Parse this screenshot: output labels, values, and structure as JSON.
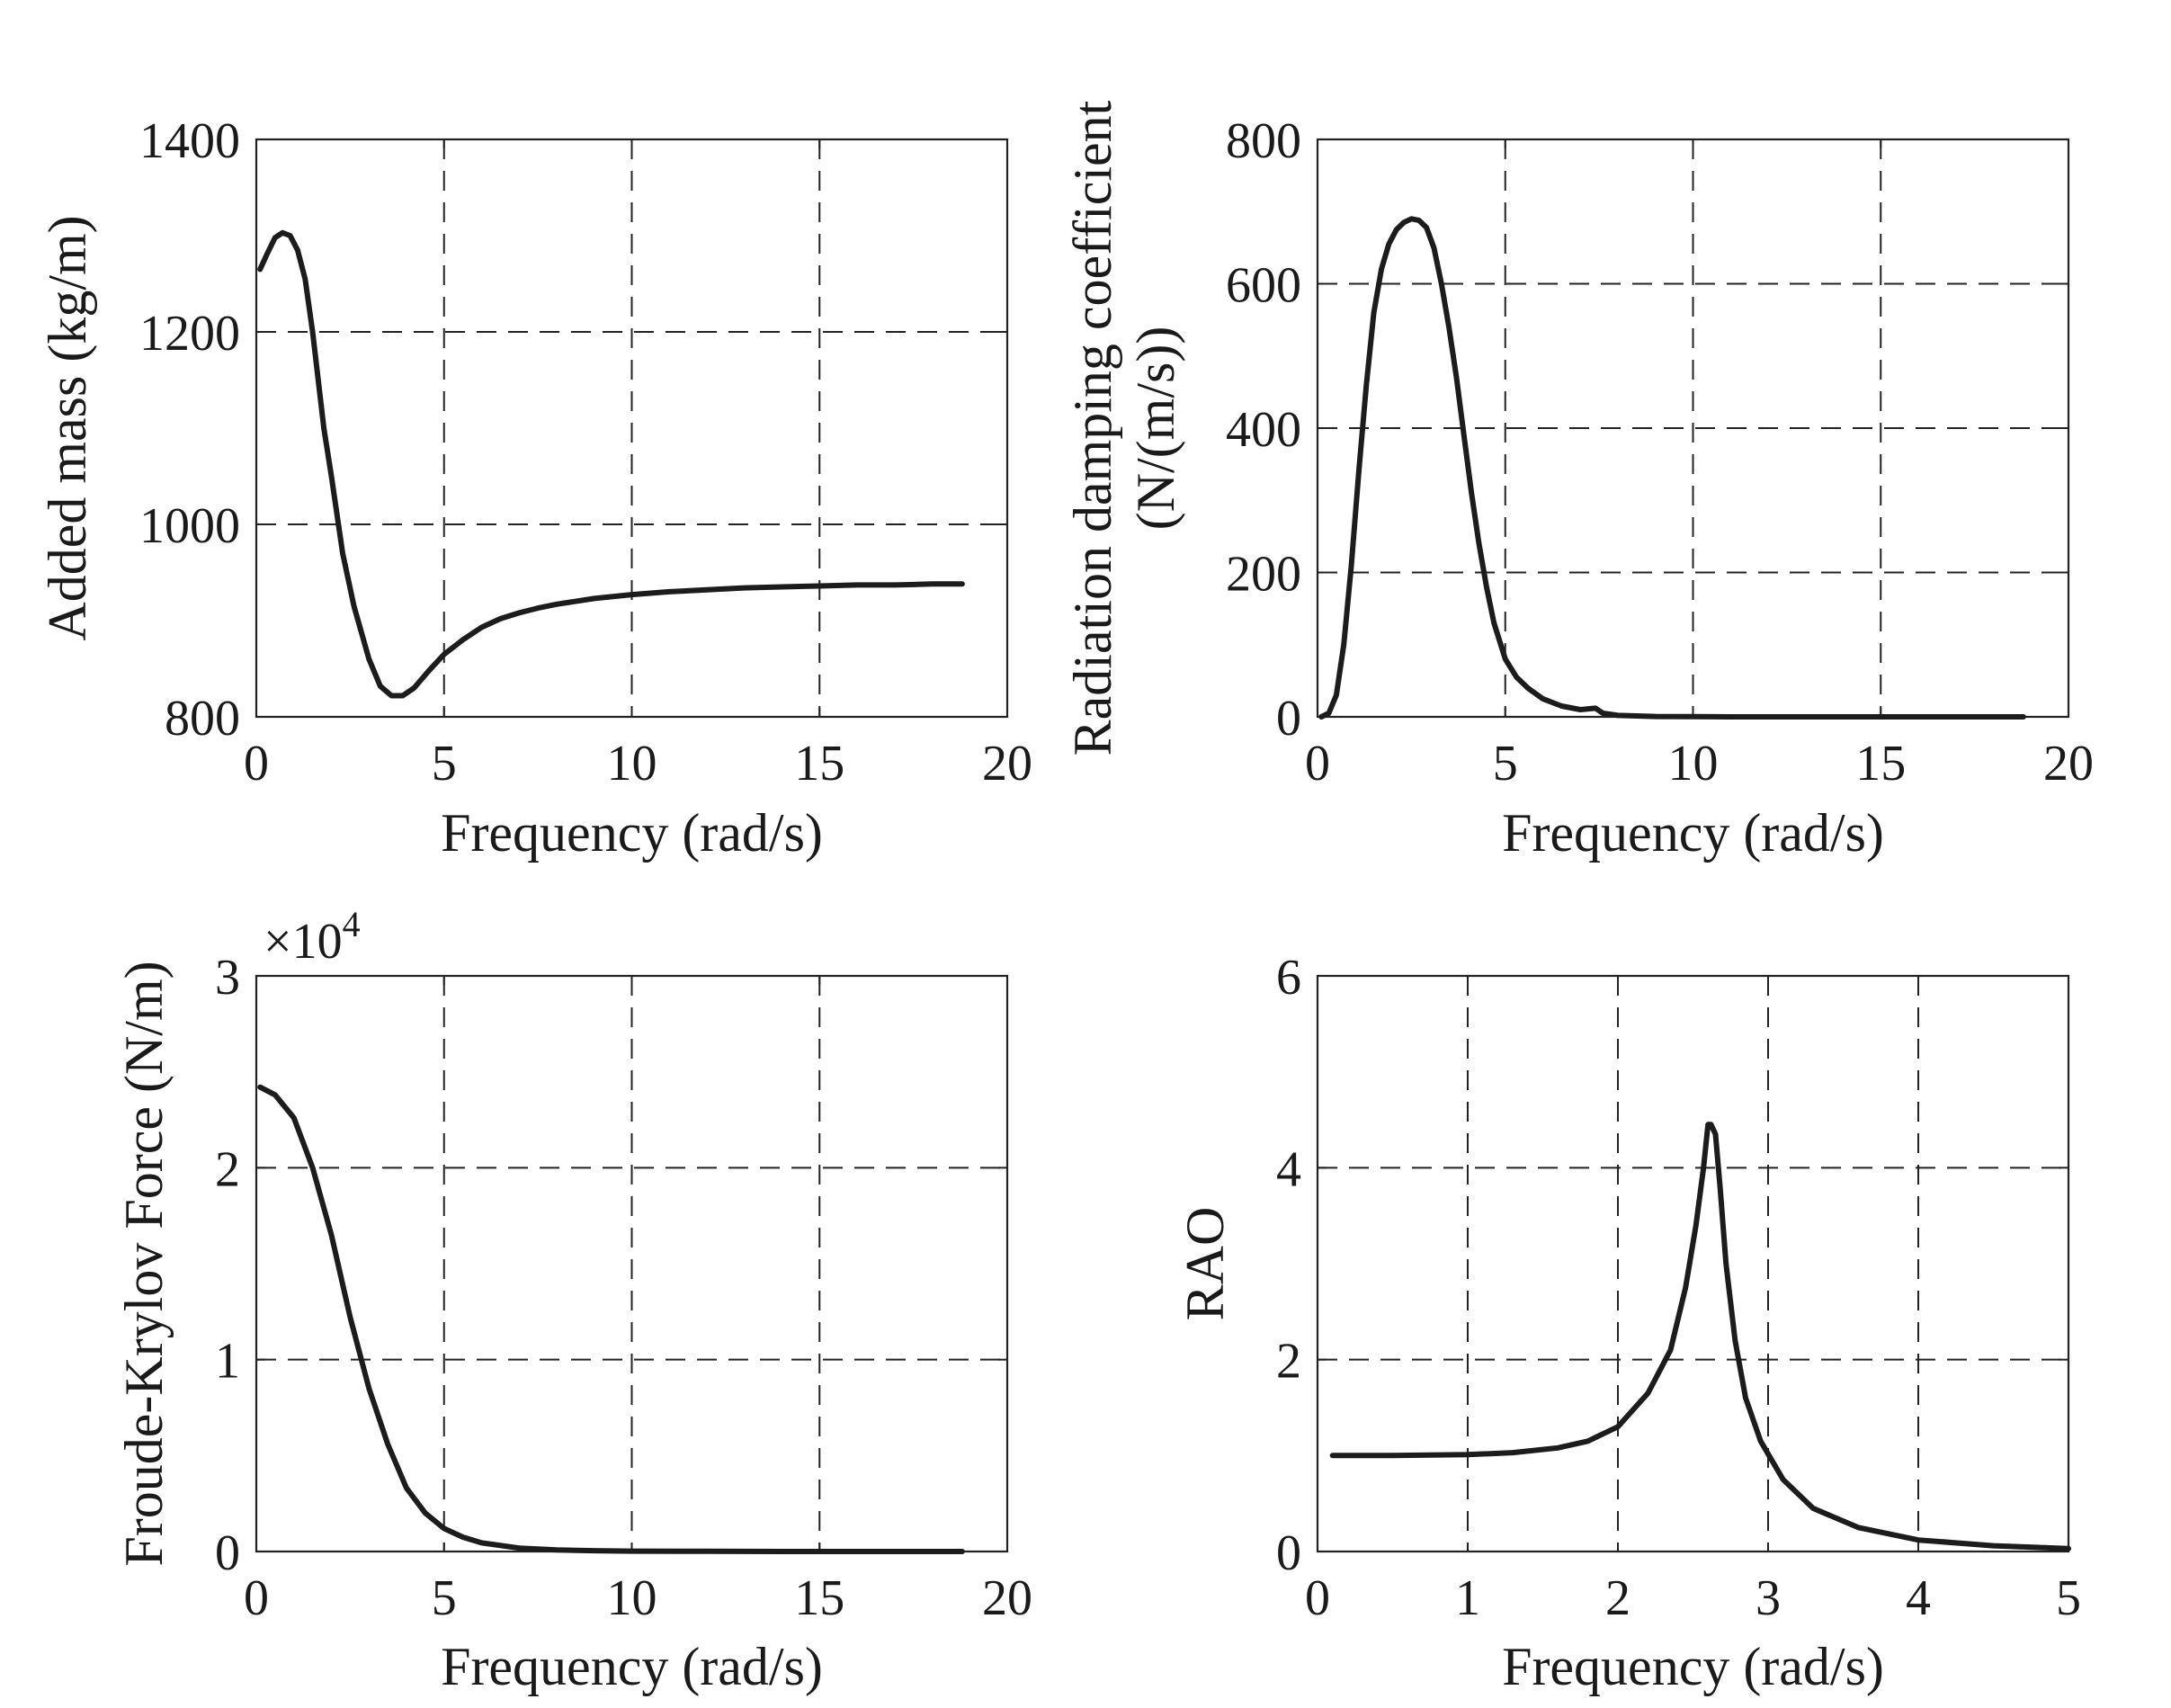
{
  "chart_data": [
    {
      "id": "added-mass",
      "type": "line",
      "title": "",
      "xlabel": "Frequency (rad/s)",
      "ylabel": [
        "Added mass (kg/m)"
      ],
      "xlim": [
        0,
        20
      ],
      "ylim": [
        800,
        1400
      ],
      "xticks": [
        0,
        5,
        10,
        15,
        20
      ],
      "yticks": [
        800,
        1000,
        1200,
        1400
      ],
      "xtick_labels": [
        "0",
        "5",
        "10",
        "15",
        "20"
      ],
      "ytick_labels": [
        "800",
        "1000",
        "1200",
        "1400"
      ],
      "exponent_label": "",
      "grid": true,
      "series": [
        {
          "name": "Added mass",
          "x": [
            0.1,
            0.3,
            0.5,
            0.7,
            0.9,
            1.1,
            1.3,
            1.5,
            1.8,
            2.0,
            2.3,
            2.6,
            3.0,
            3.3,
            3.6,
            3.9,
            4.2,
            4.6,
            5.0,
            5.5,
            6.0,
            6.5,
            7.0,
            7.5,
            8.0,
            9.0,
            10.0,
            11.0,
            12.0,
            13.0,
            14.0,
            15.0,
            16.0,
            17.0,
            18.0,
            18.8
          ],
          "y": [
            1265,
            1282,
            1298,
            1303,
            1300,
            1285,
            1255,
            1200,
            1100,
            1050,
            970,
            915,
            860,
            832,
            822,
            822,
            830,
            848,
            865,
            880,
            893,
            902,
            908,
            913,
            917,
            923,
            927,
            930,
            932,
            934,
            935,
            936,
            937,
            937,
            938,
            938
          ]
        }
      ]
    },
    {
      "id": "radiation-damping",
      "type": "line",
      "title": "",
      "xlabel": "Frequency (rad/s)",
      "ylabel": [
        "Radiation damping coefficient",
        "(N/(m/s))"
      ],
      "xlim": [
        0,
        20
      ],
      "ylim": [
        0,
        800
      ],
      "xticks": [
        0,
        5,
        10,
        15,
        20
      ],
      "yticks": [
        0,
        200,
        400,
        600,
        800
      ],
      "xtick_labels": [
        "0",
        "5",
        "10",
        "15",
        "20"
      ],
      "ytick_labels": [
        "0",
        "200",
        "400",
        "600",
        "800"
      ],
      "exponent_label": "",
      "grid": true,
      "series": [
        {
          "name": "Radiation damping",
          "x": [
            0.1,
            0.3,
            0.5,
            0.7,
            0.9,
            1.1,
            1.3,
            1.5,
            1.7,
            1.9,
            2.1,
            2.3,
            2.5,
            2.7,
            2.9,
            3.1,
            3.3,
            3.5,
            3.7,
            3.9,
            4.1,
            4.3,
            4.5,
            4.7,
            5.0,
            5.3,
            5.6,
            6.0,
            6.5,
            7.0,
            7.4,
            7.6,
            8.0,
            9.0,
            10.0,
            11.0,
            12.0,
            14.0,
            16.0,
            18.8
          ],
          "y": [
            0,
            5,
            30,
            100,
            210,
            340,
            460,
            560,
            620,
            655,
            675,
            685,
            690,
            688,
            678,
            650,
            600,
            540,
            470,
            390,
            310,
            240,
            180,
            130,
            80,
            55,
            40,
            25,
            15,
            10,
            12,
            5,
            2,
            0.5,
            0.2,
            0,
            0,
            0,
            0,
            0
          ]
        }
      ]
    },
    {
      "id": "froude-krylov",
      "type": "line",
      "title": "",
      "xlabel": "Frequency (rad/s)",
      "ylabel": [
        "Froude-Krylov Force (N/m)"
      ],
      "xlim": [
        0,
        20
      ],
      "ylim": [
        0,
        3
      ],
      "xticks": [
        0,
        5,
        10,
        15,
        20
      ],
      "yticks": [
        0,
        1,
        2,
        3
      ],
      "xtick_labels": [
        "0",
        "5",
        "10",
        "15",
        "20"
      ],
      "ytick_labels": [
        "0",
        "1",
        "2",
        "3"
      ],
      "exponent_label": "×10",
      "exponent_power": "4",
      "grid": true,
      "series": [
        {
          "name": "Froude-Krylov force (×10^4)",
          "x": [
            0.1,
            0.5,
            1.0,
            1.5,
            2.0,
            2.5,
            3.0,
            3.5,
            4.0,
            4.5,
            5.0,
            5.5,
            6.0,
            7.0,
            8.0,
            9.0,
            10.0,
            12.0,
            14.0,
            16.0,
            18.8
          ],
          "y": [
            2.42,
            2.38,
            2.26,
            2.0,
            1.65,
            1.22,
            0.85,
            0.56,
            0.33,
            0.2,
            0.12,
            0.075,
            0.045,
            0.018,
            0.008,
            0.004,
            0.002,
            0.001,
            0.0,
            0.0,
            0.0
          ]
        }
      ]
    },
    {
      "id": "rao",
      "type": "line",
      "title": "",
      "xlabel": "Frequency (rad/s)",
      "ylabel": [
        "RAO"
      ],
      "xlim": [
        0,
        5
      ],
      "ylim": [
        0,
        6
      ],
      "xticks": [
        0,
        1,
        2,
        3,
        4,
        5
      ],
      "yticks": [
        0,
        2,
        4,
        6
      ],
      "xtick_labels": [
        "0",
        "1",
        "2",
        "3",
        "4",
        "5"
      ],
      "ytick_labels": [
        "0",
        "2",
        "4",
        "6"
      ],
      "exponent_label": "",
      "grid": true,
      "series": [
        {
          "name": "RAO",
          "x": [
            0.1,
            0.5,
            1.0,
            1.3,
            1.6,
            1.8,
            2.0,
            2.2,
            2.35,
            2.45,
            2.52,
            2.57,
            2.6,
            2.62,
            2.65,
            2.68,
            2.72,
            2.78,
            2.85,
            2.95,
            3.1,
            3.3,
            3.6,
            4.0,
            4.5,
            5.0
          ],
          "y": [
            1.0,
            1.0,
            1.01,
            1.03,
            1.08,
            1.15,
            1.3,
            1.65,
            2.1,
            2.75,
            3.4,
            4.0,
            4.45,
            4.45,
            4.35,
            3.8,
            3.0,
            2.2,
            1.6,
            1.15,
            0.75,
            0.45,
            0.25,
            0.12,
            0.06,
            0.03
          ]
        }
      ]
    }
  ]
}
